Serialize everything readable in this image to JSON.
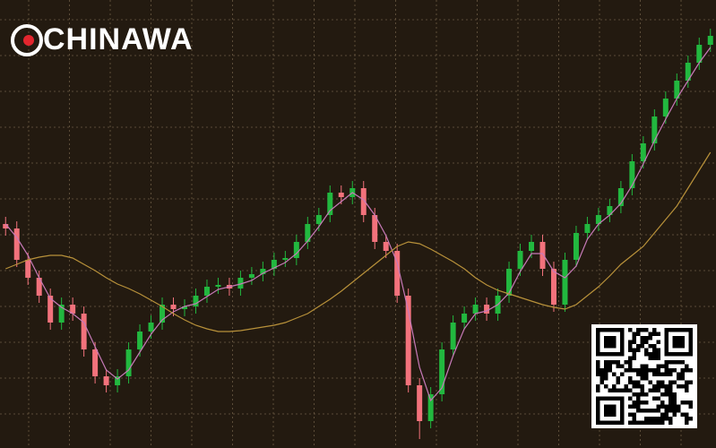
{
  "chart_data": {
    "type": "candlestick",
    "watermark": "CHINAWA",
    "ylim": [
      0,
      500
    ],
    "grid": true,
    "up_color": "#22b83f",
    "down_color": "#f2727c",
    "open": [
      250,
      245,
      210,
      190,
      170,
      140,
      160,
      150,
      110,
      80,
      70,
      80,
      110,
      130,
      140,
      160,
      155,
      158,
      170,
      180,
      182,
      178,
      190,
      194,
      200,
      210,
      212,
      230,
      250,
      260,
      285,
      280,
      290,
      260,
      230,
      220,
      170,
      70,
      30,
      60,
      110,
      140,
      150,
      160,
      150,
      170,
      200,
      220,
      230,
      200,
      160,
      210,
      240,
      250,
      260,
      270,
      290,
      320,
      340,
      370,
      390,
      410,
      430,
      450
    ],
    "high": [
      258,
      253,
      218,
      198,
      178,
      168,
      168,
      158,
      118,
      88,
      88,
      118,
      138,
      148,
      168,
      168,
      166,
      178,
      188,
      190,
      190,
      198,
      202,
      208,
      218,
      220,
      238,
      258,
      268,
      293,
      293,
      298,
      298,
      268,
      238,
      228,
      178,
      78,
      68,
      118,
      148,
      158,
      168,
      168,
      178,
      208,
      228,
      238,
      238,
      208,
      218,
      248,
      258,
      268,
      278,
      298,
      328,
      348,
      378,
      398,
      418,
      438,
      458,
      468
    ],
    "low": [
      237,
      202,
      182,
      162,
      132,
      132,
      142,
      102,
      72,
      62,
      62,
      72,
      102,
      122,
      132,
      147,
      147,
      150,
      162,
      172,
      170,
      170,
      182,
      186,
      192,
      202,
      204,
      222,
      242,
      252,
      272,
      272,
      252,
      222,
      212,
      162,
      62,
      10,
      22,
      52,
      102,
      132,
      142,
      142,
      142,
      162,
      192,
      212,
      192,
      152,
      152,
      202,
      232,
      242,
      252,
      262,
      282,
      312,
      332,
      362,
      382,
      402,
      422,
      442
    ],
    "close": [
      245,
      210,
      190,
      170,
      140,
      160,
      150,
      110,
      80,
      70,
      80,
      110,
      130,
      140,
      160,
      155,
      158,
      170,
      180,
      182,
      178,
      190,
      194,
      200,
      210,
      212,
      230,
      250,
      260,
      285,
      280,
      290,
      260,
      230,
      220,
      170,
      70,
      30,
      60,
      110,
      140,
      150,
      160,
      150,
      170,
      200,
      220,
      230,
      200,
      160,
      210,
      240,
      250,
      260,
      270,
      290,
      320,
      340,
      370,
      390,
      410,
      430,
      450,
      460
    ],
    "lines": [
      {
        "color": "#c77ab8",
        "values": [
          250,
          235,
          215,
          190,
          167,
          157,
          150,
          140,
          113,
          87,
          77,
          87,
          107,
          127,
          143,
          152,
          158,
          161,
          169,
          177,
          180,
          183,
          187,
          195,
          201,
          207,
          217,
          231,
          247,
          265,
          275,
          285,
          277,
          260,
          237,
          207,
          153,
          90,
          53,
          67,
          103,
          133,
          150,
          153,
          160,
          173,
          197,
          217,
          217,
          197,
          190,
          203,
          233,
          250,
          260,
          273,
          293,
          317,
          343,
          367,
          390,
          410,
          430,
          447
        ]
      },
      {
        "color": "#b8913a",
        "values": [
          200,
          205,
          210,
          213,
          215,
          215,
          212,
          205,
          198,
          190,
          183,
          178,
          172,
          165,
          158,
          150,
          143,
          137,
          133,
          130,
          130,
          131,
          133,
          135,
          137,
          140,
          145,
          150,
          158,
          166,
          175,
          185,
          195,
          205,
          215,
          225,
          230,
          228,
          222,
          215,
          208,
          200,
          190,
          182,
          176,
          172,
          168,
          164,
          160,
          157,
          155,
          160,
          170,
          180,
          192,
          205,
          215,
          225,
          240,
          255,
          270,
          290,
          310,
          330
        ]
      }
    ]
  }
}
